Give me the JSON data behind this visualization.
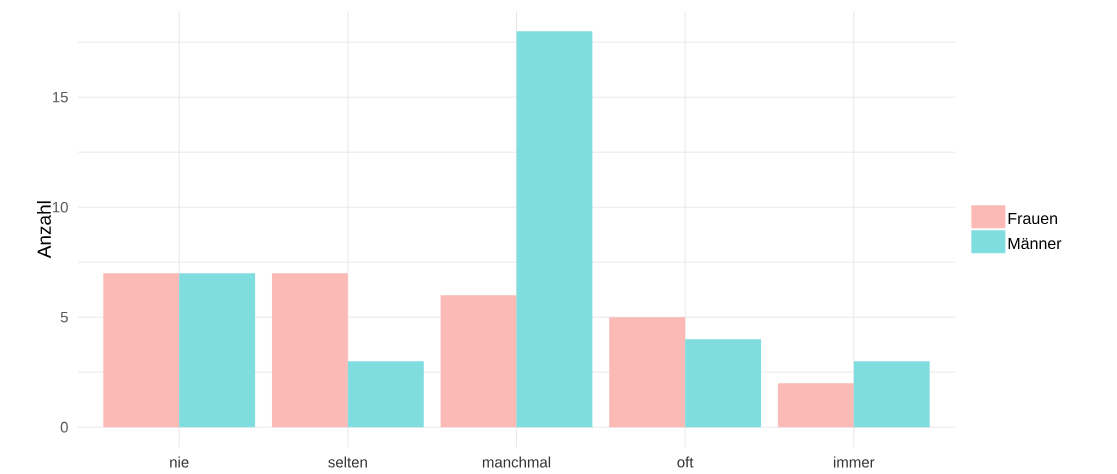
{
  "chart_data": {
    "type": "bar",
    "ylabel": "Anzahl",
    "categories": [
      "nie",
      "selten",
      "manchmal",
      "oft",
      "immer"
    ],
    "series": [
      {
        "name": "Frauen",
        "color": "#fbbab6",
        "values": [
          7,
          7,
          6,
          5,
          2
        ]
      },
      {
        "name": "Männer",
        "color": "#7fdde0",
        "values": [
          7,
          3,
          18,
          4,
          3
        ]
      }
    ],
    "ylim": [
      -0.9,
      18.9
    ],
    "yticks": [
      0,
      {
        "value": 2.5,
        "label": null
      },
      5,
      {
        "value": 7.5,
        "label": null
      },
      10,
      {
        "value": 12.5,
        "label": null
      },
      15,
      {
        "value": 17.5,
        "label": null
      }
    ],
    "grid": true,
    "legend": "right"
  }
}
